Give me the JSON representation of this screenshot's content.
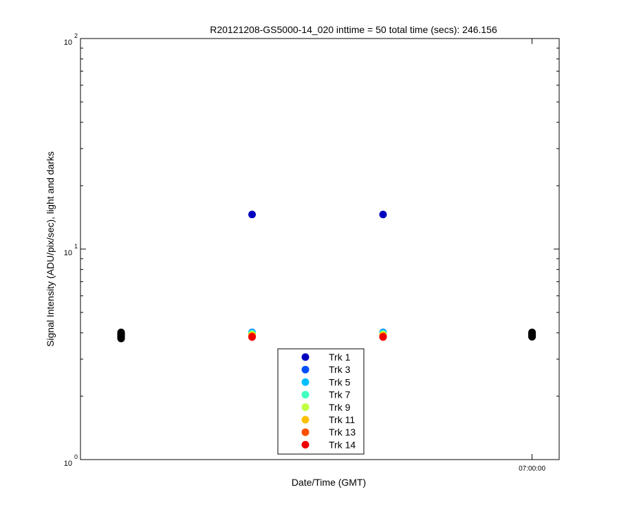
{
  "chart_data": {
    "type": "scatter",
    "title": "R20121208-GS5000-14_020 inttime = 50 total time (secs): 246.156",
    "xlabel": "Date/Time (GMT)",
    "ylabel": "Signal Intensity (ADU/pix/sec), light and darks",
    "yscale": "log",
    "ylim": [
      1,
      100
    ],
    "y_ticks": [
      {
        "base": "10",
        "exp": "0"
      },
      {
        "base": "10",
        "exp": "1"
      },
      {
        "base": "10",
        "exp": "2"
      }
    ],
    "xlim": [
      "06:58:20",
      "07:00:06"
    ],
    "x_tick_labels": [
      {
        "time": "07:00:00",
        "label": "07:00:00"
      }
    ],
    "grid": false,
    "legend_position": "bottom-center",
    "series": [
      {
        "name": "Trk 1",
        "color": "#0000bf",
        "x": [
          "06:58:58",
          "06:59:27"
        ],
        "y": [
          14.6,
          14.6
        ]
      },
      {
        "name": "Trk 3",
        "color": "#0050ff",
        "x": [
          "06:58:58",
          "06:59:27"
        ],
        "y": [
          4.02,
          4.02
        ]
      },
      {
        "name": "Trk 5",
        "color": "#00bfff",
        "x": [
          "06:58:58",
          "06:59:27"
        ],
        "y": [
          4.0,
          4.0
        ]
      },
      {
        "name": "Trk 7",
        "color": "#40ffbf",
        "x": [
          "06:58:58",
          "06:59:27"
        ],
        "y": [
          3.96,
          3.96
        ]
      },
      {
        "name": "Trk 9",
        "color": "#bfff40",
        "x": [
          "06:58:58",
          "06:59:27"
        ],
        "y": [
          3.92,
          3.92
        ]
      },
      {
        "name": "Trk 11",
        "color": "#ffbf00",
        "x": [
          "06:58:58",
          "06:59:27"
        ],
        "y": [
          3.88,
          3.88
        ]
      },
      {
        "name": "Trk 13",
        "color": "#ff5000",
        "x": [
          "06:58:58",
          "06:59:27"
        ],
        "y": [
          3.85,
          3.85
        ]
      },
      {
        "name": "Trk 14",
        "color": "#ef0000",
        "x": [
          "06:58:58",
          "06:59:27"
        ],
        "y": [
          3.82,
          3.82
        ]
      }
    ],
    "dark_series": {
      "color": "#000000",
      "x": [
        "06:58:29",
        "06:58:29",
        "06:58:29",
        "06:58:29",
        "06:58:29",
        "06:58:29",
        "06:58:29",
        "06:58:29",
        "07:00:00",
        "07:00:00",
        "07:00:00",
        "07:00:00",
        "07:00:00",
        "07:00:00",
        "07:00:00",
        "07:00:00"
      ],
      "y": [
        4.02,
        3.98,
        3.94,
        3.9,
        3.86,
        3.82,
        3.79,
        3.76,
        4.02,
        3.99,
        3.96,
        3.93,
        3.9,
        3.87,
        3.85,
        3.83
      ]
    }
  }
}
